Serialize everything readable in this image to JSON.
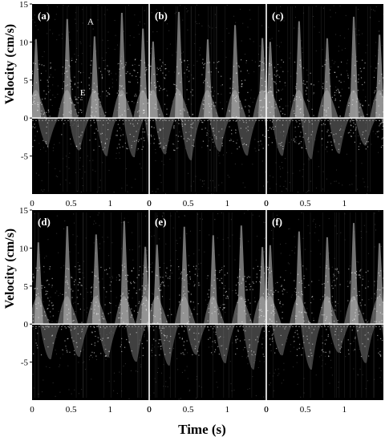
{
  "chart_data": {
    "type": "heatmap",
    "description_kind": "Doppler velocity spectrogram panels",
    "xlabel": "Time (s)",
    "ylabel": "Velocity (cm/s)",
    "ylim": [
      -10,
      15
    ],
    "y_ticks": [
      -5,
      0,
      5,
      10,
      15
    ],
    "x_ticks": [
      {
        "value": 0,
        "label": "0"
      },
      {
        "value": 0.5,
        "label": "0.5"
      },
      {
        "value": 1,
        "label": "1"
      }
    ],
    "xlim": [
      0,
      1.5
    ],
    "panels": [
      {
        "label": "(a)",
        "row": 0,
        "col": 0,
        "beats": [
          0.05,
          0.45,
          0.8,
          1.15,
          1.42
        ],
        "show_x_end_zero": true
      },
      {
        "label": "(b)",
        "row": 0,
        "col": 1,
        "beats": [
          0.05,
          0.38,
          0.75,
          1.1,
          1.45
        ],
        "show_x_end_zero": true
      },
      {
        "label": "(c)",
        "row": 0,
        "col": 2,
        "beats": [
          0.05,
          0.42,
          0.78,
          1.12,
          1.45
        ],
        "show_x_end_zero": false
      },
      {
        "label": "(d)",
        "row": 1,
        "col": 0,
        "beats": [
          0.08,
          0.45,
          0.82,
          1.18,
          1.45
        ],
        "show_x_end_zero": true
      },
      {
        "label": "(e)",
        "row": 1,
        "col": 1,
        "beats": [
          0.1,
          0.45,
          0.82,
          1.18,
          1.45
        ],
        "show_x_end_zero": true
      },
      {
        "label": "(f)",
        "row": 1,
        "col": 2,
        "beats": [
          0.05,
          0.42,
          0.78,
          1.12,
          1.45
        ],
        "show_x_end_zero": false
      }
    ],
    "annotations": [
      {
        "panel": "(a)",
        "text": "A",
        "x": 0.75,
        "y": 12.3
      },
      {
        "panel": "(a)",
        "text": "E",
        "x": 0.65,
        "y": 3.0
      }
    ]
  }
}
